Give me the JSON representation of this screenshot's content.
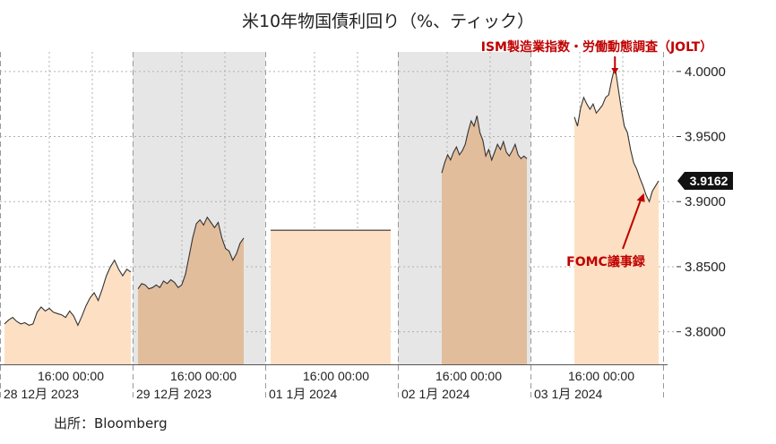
{
  "chart_data": {
    "type": "line",
    "title": "米10年物国債利回り（%、ティック）",
    "ylim": [
      3.775,
      4.015
    ],
    "yticks": [
      3.8,
      3.85,
      3.9,
      3.95,
      4.0
    ],
    "ytick_labels": [
      "3.8000",
      "3.8500",
      "3.9000",
      "3.9500",
      "4.0000"
    ],
    "last_value_label": "3.9162",
    "grid": true,
    "x_labels": [
      {
        "time": "16:00 00:00",
        "date": "28 12月 2023"
      },
      {
        "time": "16:00 00:00",
        "date": "29 12月 2023"
      },
      {
        "time": "16:00 00:00",
        "date": "01 1月 2024"
      },
      {
        "time": "16:00 00:00",
        "date": "02 1月 2024"
      },
      {
        "time": "16:00 00:00",
        "date": "03 1月 2024"
      }
    ],
    "days": [
      {
        "date": "2023-12-28",
        "values": [
          3.806,
          3.809,
          3.811,
          3.808,
          3.806,
          3.807,
          3.805,
          3.806,
          3.815,
          3.819,
          3.816,
          3.818,
          3.815,
          3.814,
          3.813,
          3.811,
          3.816,
          3.812,
          3.805,
          3.812,
          3.82,
          3.826,
          3.83,
          3.824,
          3.833,
          3.843,
          3.85,
          3.855,
          3.848,
          3.843,
          3.848,
          3.846
        ]
      },
      {
        "date": "2023-12-29",
        "values": [
          3.833,
          3.837,
          3.836,
          3.833,
          3.834,
          3.836,
          3.834,
          3.839,
          3.837,
          3.84,
          3.838,
          3.834,
          3.836,
          3.844,
          3.858,
          3.872,
          3.883,
          3.886,
          3.882,
          3.888,
          3.884,
          3.88,
          3.884,
          3.872,
          3.864,
          3.862,
          3.855,
          3.86,
          3.868,
          3.872
        ]
      },
      {
        "date": "2024-01-01",
        "values": [
          3.878,
          3.878
        ]
      },
      {
        "date": "2024-01-02",
        "values": [
          3.922,
          3.93,
          3.936,
          3.932,
          3.938,
          3.942,
          3.936,
          3.939,
          3.944,
          3.954,
          3.962,
          3.958,
          3.966,
          3.953,
          3.947,
          3.935,
          3.94,
          3.932,
          3.938,
          3.944,
          3.94,
          3.946,
          3.938,
          3.935,
          3.939,
          3.944,
          3.936,
          3.933,
          3.935,
          3.933
        ]
      },
      {
        "date": "2024-01-03",
        "values": [
          3.965,
          3.958,
          3.972,
          3.98,
          3.975,
          3.971,
          3.975,
          3.968,
          3.971,
          3.974,
          3.98,
          3.982,
          3.994,
          4.004,
          3.988,
          3.972,
          3.958,
          3.953,
          3.94,
          3.93,
          3.925,
          3.918,
          3.912,
          3.905,
          3.9,
          3.908,
          3.912,
          3.916
        ]
      }
    ],
    "annotations": [
      {
        "text": "ISM製造業指数・労働動態調査（JOLT）",
        "day": 4,
        "index": 13
      },
      {
        "text": "FOMC議事録",
        "day": 4,
        "index": 22
      }
    ]
  },
  "source": "出所：Bloomberg"
}
